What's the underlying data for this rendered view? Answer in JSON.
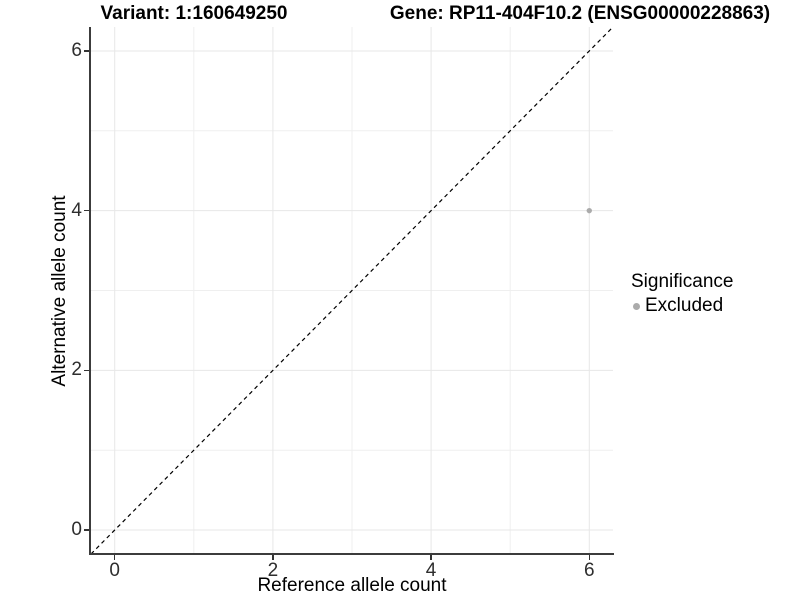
{
  "chart_data": {
    "type": "scatter",
    "titles": {
      "left": "Variant: 1:160649250",
      "right": "Gene: RP11-404F10.2 (ENSG00000228863)"
    },
    "xlabel": "Reference allele count",
    "ylabel": "Alternative allele count",
    "xlim": [
      -0.3,
      6.3
    ],
    "ylim": [
      -0.3,
      6.3
    ],
    "x_ticks": [
      0,
      2,
      4,
      6
    ],
    "y_ticks": [
      0,
      2,
      4,
      6
    ],
    "grid": {
      "major": true,
      "minor": true,
      "major_color": "#e7e7e7",
      "minor_color": "#efefef"
    },
    "identity_line": {
      "type": "dashed",
      "slope": 1,
      "intercept": 0,
      "color": "#000000"
    },
    "series": [
      {
        "name": "Excluded",
        "color": "#ababab",
        "points": [
          {
            "x": 6,
            "y": 4
          }
        ]
      }
    ],
    "legend": {
      "title": "Significance",
      "position": "right",
      "entries": [
        {
          "label": "Excluded",
          "color": "#ababab"
        }
      ]
    }
  }
}
